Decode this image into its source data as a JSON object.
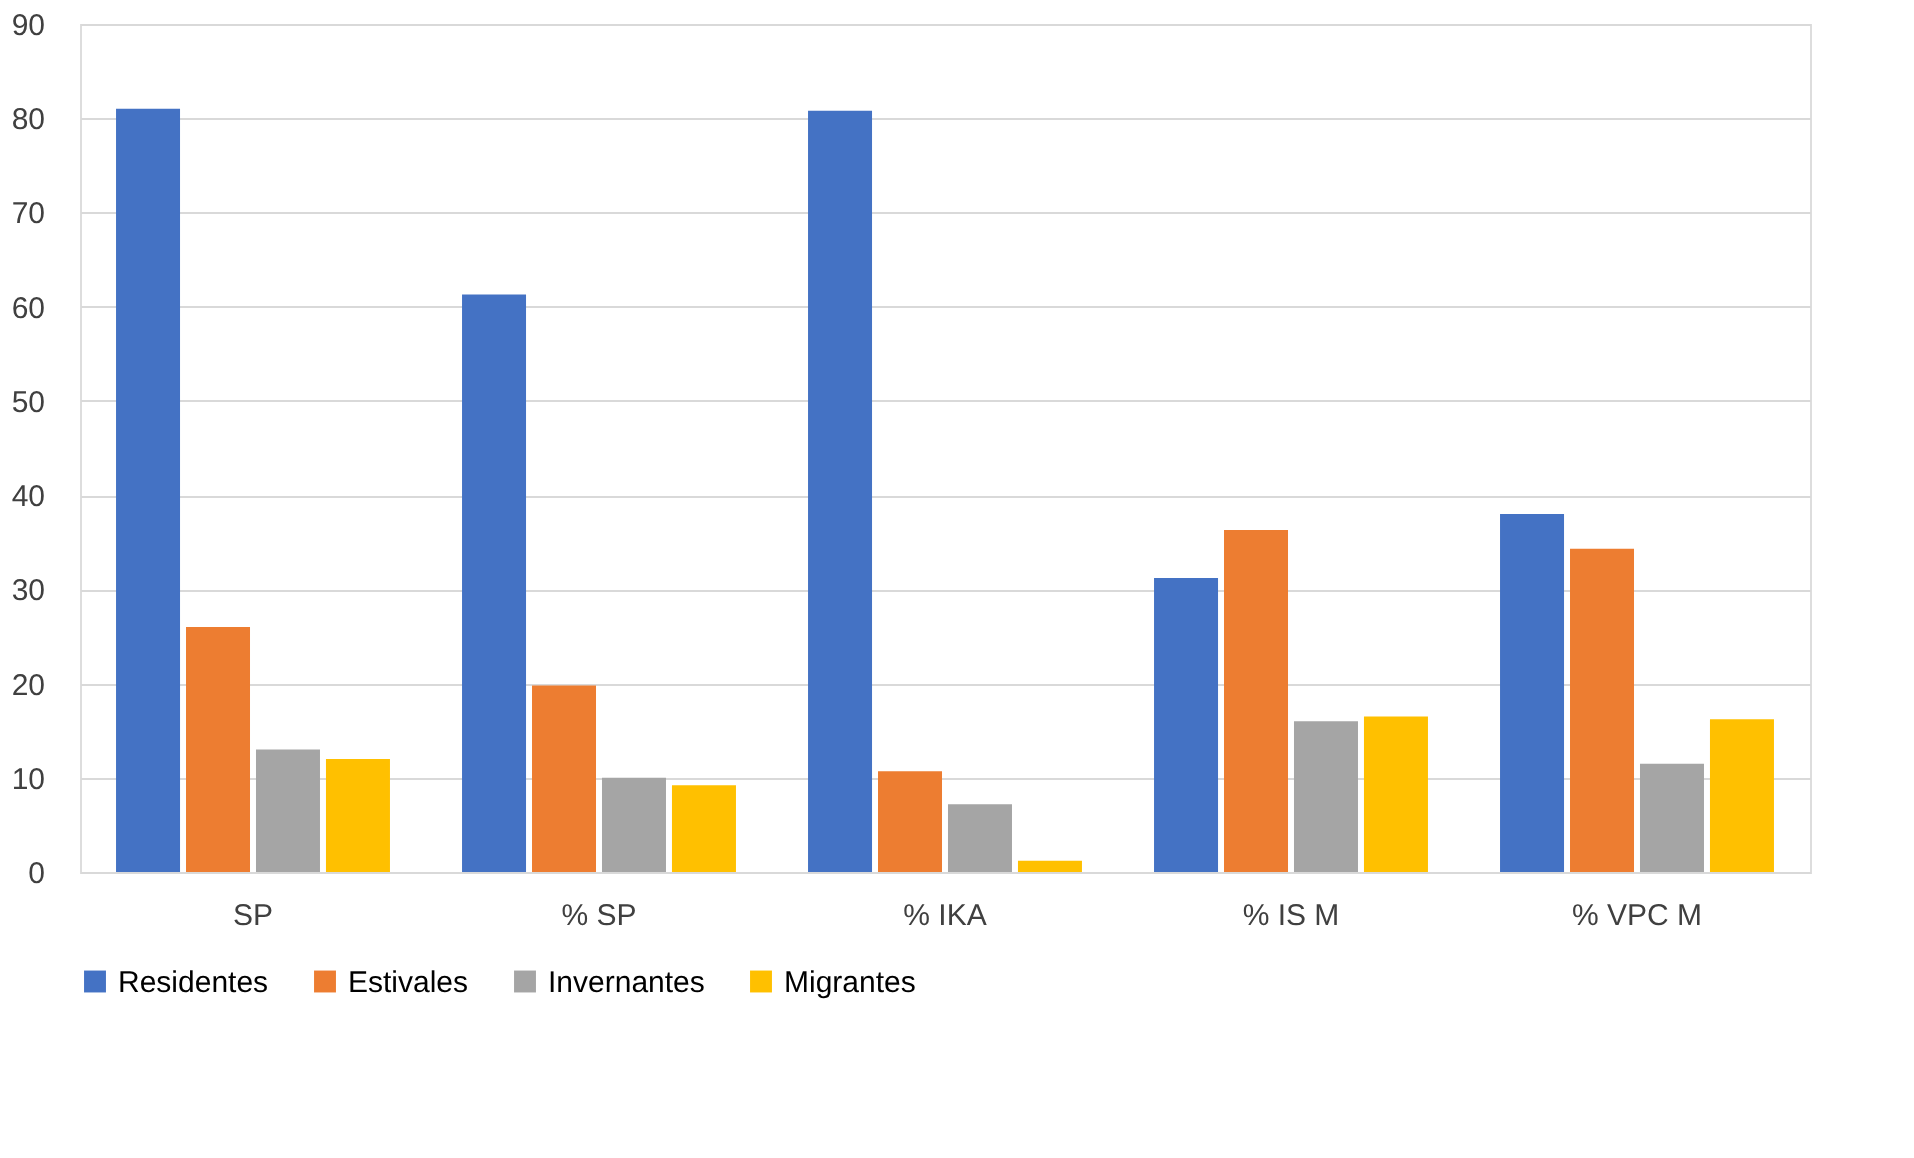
{
  "chart_data": {
    "type": "bar",
    "categories": [
      "SP",
      "% SP",
      "% IKA",
      "% IS M",
      "% VPC M"
    ],
    "series": [
      {
        "name": "Residentes",
        "color": "#4472c4",
        "values": [
          81,
          61.3,
          80.8,
          31.2,
          38
        ]
      },
      {
        "name": "Estivales",
        "color": "#ed7d31",
        "values": [
          26,
          19.8,
          10.7,
          36.3,
          34.3
        ]
      },
      {
        "name": "Invernantes",
        "color": "#a5a5a5",
        "values": [
          13,
          10,
          7.2,
          16,
          11.5
        ]
      },
      {
        "name": "Migrantes",
        "color": "#ffc000",
        "values": [
          12,
          9.2,
          1.2,
          16.5,
          16.2
        ]
      }
    ],
    "ylim": [
      0,
      90
    ],
    "yticks": [
      0,
      10,
      20,
      30,
      40,
      50,
      60,
      70,
      80,
      90
    ],
    "grid": "y",
    "legend": "bottom"
  }
}
